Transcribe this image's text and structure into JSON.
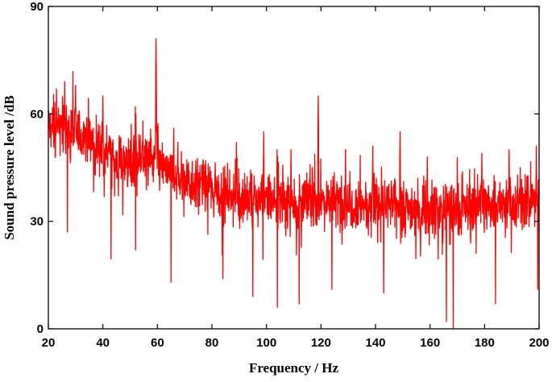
{
  "chart_data": {
    "type": "line",
    "title": "",
    "xlabel": "Frequency / Hz",
    "ylabel": "Sound pressure level /dB",
    "xlim": [
      20,
      200
    ],
    "ylim": [
      0,
      90
    ],
    "x_ticks": [
      20,
      40,
      60,
      80,
      100,
      120,
      140,
      160,
      180,
      200
    ],
    "y_ticks": [
      0,
      30,
      60,
      90
    ],
    "grid": false,
    "legend": "none",
    "series_color": "#ff0000",
    "frequency_step_hz": 0.1,
    "series": [
      {
        "envelope": [
          {
            "x": 20,
            "y": 57
          },
          {
            "x": 25,
            "y": 56
          },
          {
            "x": 30,
            "y": 55
          },
          {
            "x": 35,
            "y": 53
          },
          {
            "x": 40,
            "y": 50
          },
          {
            "x": 45,
            "y": 47
          },
          {
            "x": 50,
            "y": 46
          },
          {
            "x": 55,
            "y": 49
          },
          {
            "x": 60,
            "y": 47
          },
          {
            "x": 65,
            "y": 43
          },
          {
            "x": 70,
            "y": 42
          },
          {
            "x": 80,
            "y": 39
          },
          {
            "x": 90,
            "y": 37
          },
          {
            "x": 100,
            "y": 36
          },
          {
            "x": 110,
            "y": 35.5
          },
          {
            "x": 120,
            "y": 36
          },
          {
            "x": 130,
            "y": 35
          },
          {
            "x": 140,
            "y": 35
          },
          {
            "x": 150,
            "y": 34
          },
          {
            "x": 160,
            "y": 33.5
          },
          {
            "x": 170,
            "y": 33
          },
          {
            "x": 180,
            "y": 35
          },
          {
            "x": 190,
            "y": 35
          },
          {
            "x": 200,
            "y": 36
          }
        ],
        "noise_amplitude_db": 5.5,
        "peaks": [
          {
            "x": 23,
            "y": 67
          },
          {
            "x": 26,
            "y": 69
          },
          {
            "x": 30,
            "y": 68
          },
          {
            "x": 40,
            "y": 65
          },
          {
            "x": 52,
            "y": 70
          },
          {
            "x": 59.5,
            "y": 81
          },
          {
            "x": 66,
            "y": 56
          },
          {
            "x": 89,
            "y": 52
          },
          {
            "x": 99,
            "y": 55
          },
          {
            "x": 104,
            "y": 58
          },
          {
            "x": 109,
            "y": 50
          },
          {
            "x": 119,
            "y": 65
          },
          {
            "x": 129,
            "y": 50
          },
          {
            "x": 139,
            "y": 51
          },
          {
            "x": 149,
            "y": 55
          },
          {
            "x": 159,
            "y": 48
          },
          {
            "x": 179,
            "y": 49
          },
          {
            "x": 189,
            "y": 50
          },
          {
            "x": 199,
            "y": 51
          }
        ],
        "dips": [
          {
            "x": 27,
            "y": 27
          },
          {
            "x": 43,
            "y": 19.5
          },
          {
            "x": 52,
            "y": 22
          },
          {
            "x": 65,
            "y": 13
          },
          {
            "x": 84,
            "y": 14
          },
          {
            "x": 95,
            "y": 9
          },
          {
            "x": 104,
            "y": 6
          },
          {
            "x": 112,
            "y": 7
          },
          {
            "x": 124,
            "y": 11
          },
          {
            "x": 143,
            "y": 10
          },
          {
            "x": 166,
            "y": 2
          },
          {
            "x": 168.5,
            "y": 0
          },
          {
            "x": 184,
            "y": 7
          },
          {
            "x": 199.5,
            "y": 11
          }
        ]
      }
    ]
  }
}
